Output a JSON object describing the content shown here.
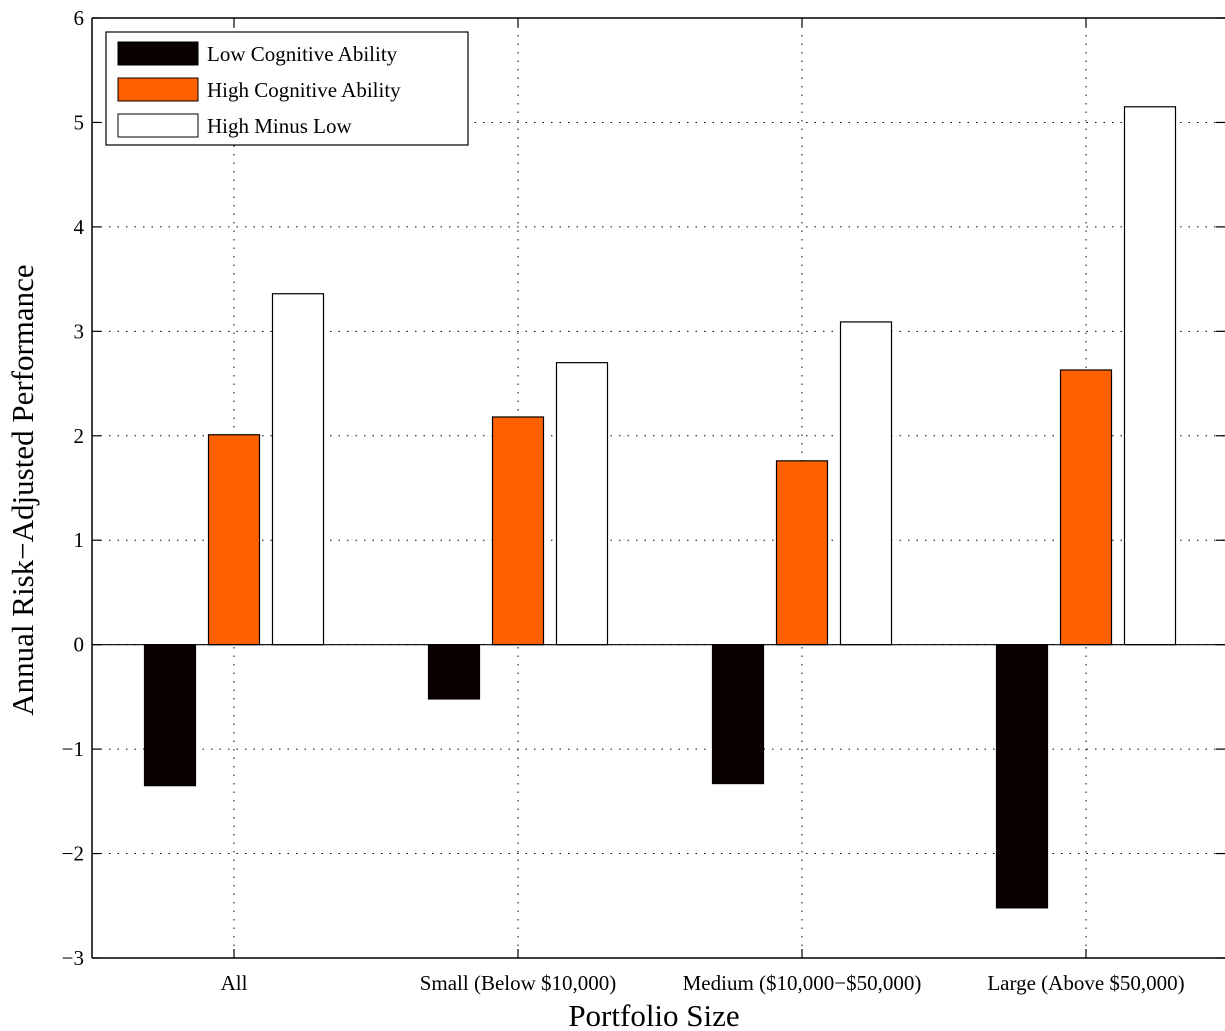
{
  "chart_data": {
    "type": "bar",
    "title": "",
    "xlabel": "Portfolio Size",
    "ylabel": "Annual Risk−Adjusted Performance",
    "categories": [
      "All",
      "Small (Below $10,000)",
      "Medium ($10,000−$50,000)",
      "Large (Above $50,000)"
    ],
    "series": [
      {
        "name": "Low Cognitive Ability",
        "color": "#0a0000",
        "values": [
          -1.35,
          -0.52,
          -1.33,
          -2.52
        ]
      },
      {
        "name": "High Cognitive Ability",
        "color": "#ff6100",
        "values": [
          2.01,
          2.18,
          1.76,
          2.63
        ]
      },
      {
        "name": "High Minus Low",
        "color": "#ffffff",
        "values": [
          3.36,
          2.7,
          3.09,
          5.15
        ]
      }
    ],
    "ylim": [
      -3,
      6
    ],
    "yticks": [
      "−3",
      "−2",
      "−1",
      "0",
      "1",
      "2",
      "3",
      "4",
      "5",
      "6"
    ],
    "grid": true,
    "legend_position": "top-left"
  }
}
